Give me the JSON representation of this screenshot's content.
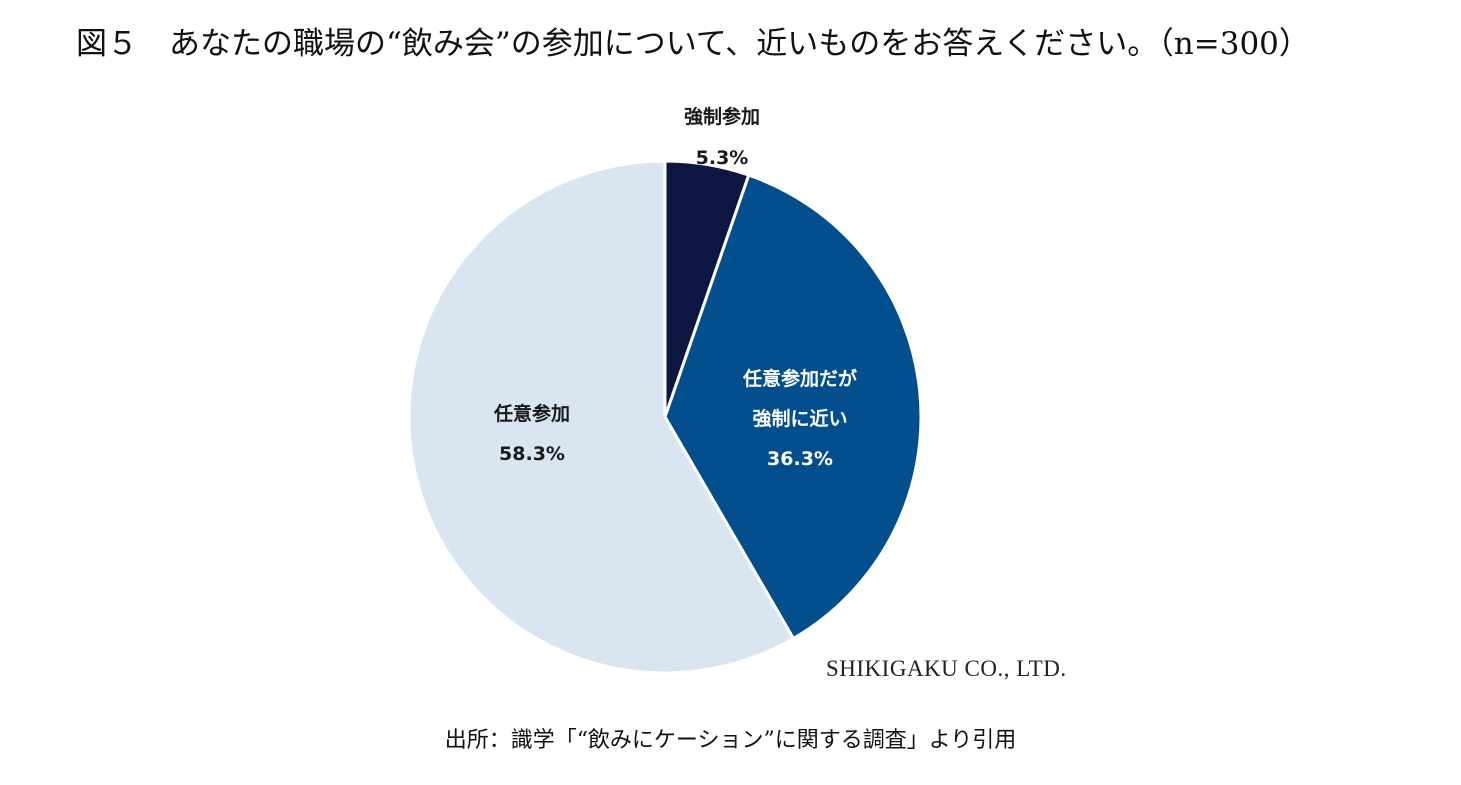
{
  "title": "図５　あなたの職場の“飲み会”の参加について、近いものをお答えください。（n=300）",
  "chart_data": {
    "type": "pie",
    "title": "図５　あなたの職場の“飲み会”の参加について、近いものをお答えください。（n=300）",
    "start_angle_deg": 0,
    "direction": "clockwise",
    "slices": [
      {
        "label_lines": [
          "強制参加"
        ],
        "value": 5.3,
        "value_label": "5.3%",
        "color": "#0d1640",
        "label_color": "#1a1a1a"
      },
      {
        "label_lines": [
          "任意参加だが",
          "強制に近い"
        ],
        "value": 36.3,
        "value_label": "36.3%",
        "color": "#034f8e",
        "label_color": "#ffffff"
      },
      {
        "label_lines": [
          "任意参加"
        ],
        "value": 58.3,
        "value_label": "58.3%",
        "color": "#d9e6f2",
        "label_color": "#1a1a1a"
      }
    ],
    "credit": "SHIKIGAKU CO., LTD."
  },
  "source": "出所：識学「“飲みにケーション”に関する調査」より引用"
}
